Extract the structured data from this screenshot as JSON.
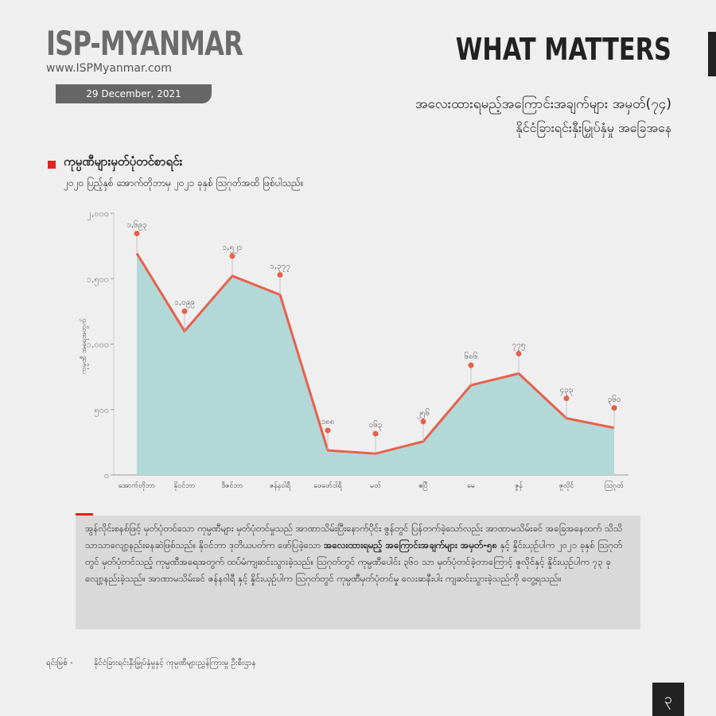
{
  "header": {
    "logo": "ISP-MYANMAR",
    "website": "www.ISPMyanmar.com",
    "date": "29 December, 2021",
    "section": "WHAT MATTERS",
    "title": "အလေးထားရမည့်အကြောင်းအချက်များ အမှတ်(၇၄)",
    "subtitle": "နိုင်ငံခြားရင်းနှီးမြှုပ်နှံမှု အခြေအနေ"
  },
  "chart_data": {
    "type": "area",
    "title": "ကုမ္ပဏီများမှတ်ပုံတင်စာရင်း",
    "subtitle": "၂၀၂၀ ပြည့်နှစ် အောက်တိုဘာမှ ၂၀၂၁ ခုနှစ် ဩဂုတ်အထိ ဖြစ်ပါသည်။",
    "y_label": "ကုမ္ပဏီ အရေအတွက်",
    "categories": [
      "အောက်တိုဘာ",
      "နိုဝင်ဘာ",
      "ဒီဇင်ဘာ",
      "ဇန်နဝါရီ",
      "ဖေဖော်ဝါရီ",
      "မတ်",
      "ဧပြီ",
      "မေ",
      "ဇွန်",
      "ဇူလိုင်",
      "ဩဂုတ်"
    ],
    "values": [
      1693,
      1099,
      1521,
      1377,
      188,
      163,
      256,
      686,
      775,
      433,
      360
    ],
    "value_labels": [
      "၁,၆၉၃",
      "၁,၀၉၉",
      "၁,၅၂၁",
      "၁,၃၇၇",
      "၁၈၈",
      "၁၆၃",
      "၂၅၆",
      "၆၈၆",
      "၇၇၅",
      "၄၃၃",
      "၃၆၀"
    ],
    "color": "#e8604c",
    "fill": "#b2d8d8",
    "ylim": [
      0,
      2000
    ],
    "yticks": [
      {
        "value": 0,
        "label": "၀"
      },
      {
        "value": 500,
        "label": "၅၀၀"
      },
      {
        "value": 1000,
        "label": "၁,၀၀၀"
      },
      {
        "value": 1500,
        "label": "၁,၅၀၀"
      },
      {
        "value": 2000,
        "label": "၂,၀၀၀"
      }
    ]
  },
  "body": {
    "parts": [
      {
        "text": "အွန်လိုင်းစနစ်ဖြင့် မှတ်ပုံတင်သော ကုမ္ပဏီများ မှတ်ပုံတင်မှုသည် အာဏာသိမ်းပြီးနောက်ပိုင်း ဇွန်တွင် ပြန်တက်ခဲ့သော်လည်း အာဏာမသိမ်းခင် အခြေအနေထက် သိသိသာသာလျော့နည်းနေဆဲဖြစ်သည်။ နိုဝင်ဘာ ဒုတိယပတ်က ဖော်ပြခဲ့သော ",
        "bold": false
      },
      {
        "text": "အလေးထားရမည့် အကြောင်းအချက်များ အမှတ်-၅၈",
        "bold": true
      },
      {
        "text": " နှင့် နှိုင်းယှဉ်ပါက ၂၀၂၁ ခုနှစ် ဩဂုတ်တွင် မှတ်ပုံတင်သည့် ကုမ္ပဏီအရေအတွက် ထပ်မံကျဆင်းသွားခဲ့သည်။ ဩဂုတ်တွင် ကုမ္ပဏီပေါင်း ၃၆၀ သာ မှတ်ပုံတင်ခဲ့တာကြောင့် ဇူလိုင်နှင့် နှိုင်းယှဉ်ပါက ၇၃ ခု လျော့နည်းခဲ့သည်။ အာဏာမသိမ်းခင် ဇန်နဝါရီ နှင့် နှိုင်းယှဉ်ပါက ဩဂုတ်တွင် ကုမ္ပဏီမှတ်ပုံတင်မှု လေးဆနီးပါး ကျဆင်းသွားခဲ့သည်ကို တွေ့ရသည်။",
        "bold": false
      }
    ]
  },
  "footer": {
    "source_label": "ရင်းမြစ် -",
    "source": "နိုင်ငံခြားရင်းနှီးမြှုပ်နှံမှုနှင့် ကုမ္ပဏီများညွှန်ကြားမှု ဦးစီးဌာန",
    "page": "၃"
  }
}
